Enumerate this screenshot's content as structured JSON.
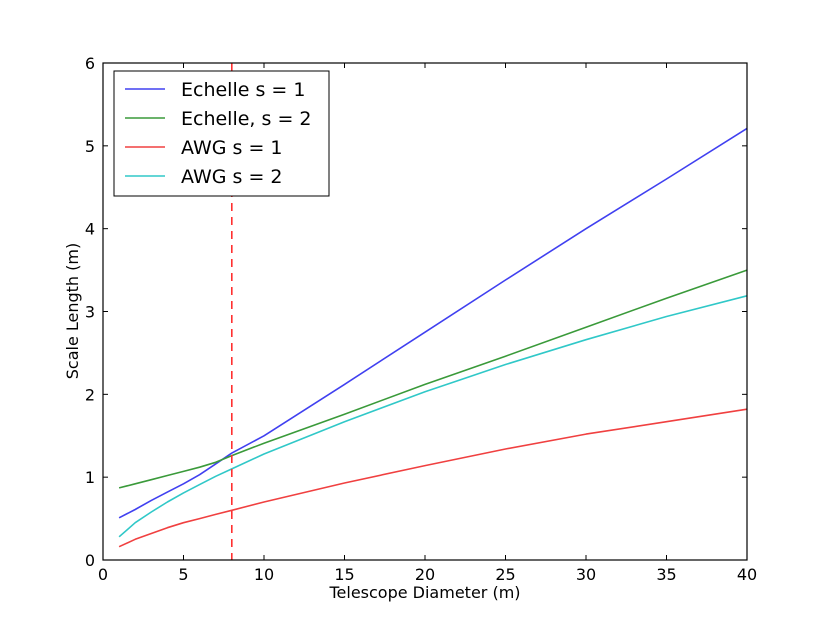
{
  "chart_data": {
    "type": "line",
    "xlabel": "Telescope Diameter (m)",
    "ylabel": "Scale Length (m)",
    "xlim": [
      0,
      40
    ],
    "ylim": [
      0,
      6
    ],
    "xticks": [
      0,
      5,
      10,
      15,
      20,
      25,
      30,
      35,
      40
    ],
    "yticks": [
      0,
      1,
      2,
      3,
      4,
      5,
      6
    ],
    "grid": false,
    "legend_position": "top-left",
    "series": [
      {
        "name": "Echelle s = 1",
        "color": "#4040f0",
        "x": [
          1,
          2,
          3,
          4,
          5,
          6,
          7,
          8,
          10,
          15,
          20,
          25,
          30,
          35,
          40
        ],
        "y": [
          0.51,
          0.61,
          0.72,
          0.82,
          0.92,
          1.03,
          1.16,
          1.29,
          1.5,
          2.12,
          2.75,
          3.38,
          4.0,
          4.6,
          5.21
        ]
      },
      {
        "name": "Echelle, s = 2",
        "color": "#3a9a3a",
        "x": [
          1,
          2,
          3,
          4,
          5,
          6,
          7,
          8,
          10,
          15,
          20,
          25,
          30,
          35,
          40
        ],
        "y": [
          0.87,
          0.92,
          0.97,
          1.02,
          1.07,
          1.12,
          1.18,
          1.26,
          1.41,
          1.76,
          2.12,
          2.46,
          2.81,
          3.16,
          3.5
        ]
      },
      {
        "name": "AWG s = 1",
        "color": "#f04040",
        "x": [
          1,
          2,
          3,
          4,
          5,
          6,
          7,
          8,
          10,
          15,
          20,
          25,
          30,
          35,
          40
        ],
        "y": [
          0.16,
          0.25,
          0.32,
          0.39,
          0.45,
          0.5,
          0.55,
          0.6,
          0.7,
          0.93,
          1.14,
          1.34,
          1.52,
          1.67,
          1.82
        ]
      },
      {
        "name": "AWG s = 2",
        "color": "#30c8c8",
        "x": [
          1,
          2,
          3,
          4,
          5,
          6,
          7,
          8,
          10,
          15,
          20,
          25,
          30,
          35,
          40
        ],
        "y": [
          0.28,
          0.45,
          0.58,
          0.7,
          0.81,
          0.91,
          1.01,
          1.1,
          1.28,
          1.67,
          2.03,
          2.36,
          2.66,
          2.94,
          3.19
        ]
      }
    ],
    "reference_line": {
      "x": 8,
      "style": "dashed",
      "color": "#ff3030"
    }
  }
}
